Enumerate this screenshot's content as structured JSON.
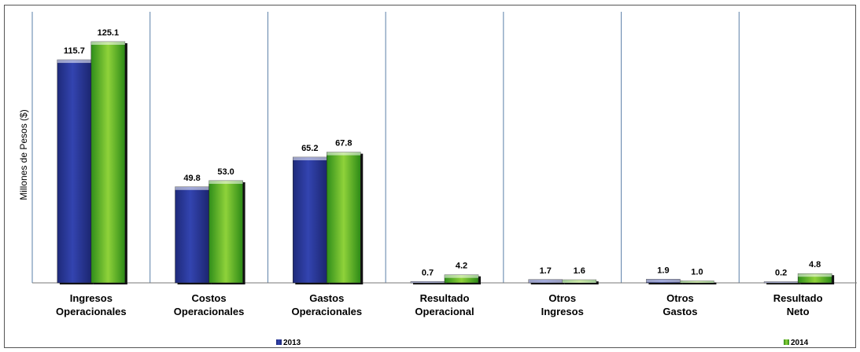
{
  "chart_data": {
    "type": "bar",
    "title": "",
    "ylabel": "Millones de Pesos ($)",
    "xlabel": "",
    "categories": [
      [
        "Ingresos",
        "Operacionales"
      ],
      [
        "Costos",
        "Operacionales"
      ],
      [
        "Gastos",
        "Operacionales"
      ],
      [
        "Resultado",
        "Operacional"
      ],
      [
        "Otros",
        "Ingresos"
      ],
      [
        "Otros",
        "Gastos"
      ],
      [
        "Resultado",
        "Neto"
      ]
    ],
    "series": [
      {
        "name": "2013",
        "color": "#2a3a9a",
        "values": [
          115.7,
          49.8,
          65.2,
          0.7,
          1.7,
          1.9,
          0.2
        ],
        "labels": [
          "115.7",
          "49.8",
          "65.2",
          "0.7",
          "1.7",
          "1.9",
          "0.2"
        ]
      },
      {
        "name": "2014",
        "color": "#3aa21e",
        "values": [
          125.1,
          53.0,
          67.8,
          4.2,
          1.6,
          1.0,
          4.8
        ],
        "labels": [
          "125.1",
          "53.0",
          "67.8",
          "4.2",
          "1.6",
          "1.0",
          "4.8"
        ]
      }
    ],
    "ylim": [
      0,
      140
    ],
    "grid": "vertical-separators",
    "legend_position": "bottom"
  }
}
